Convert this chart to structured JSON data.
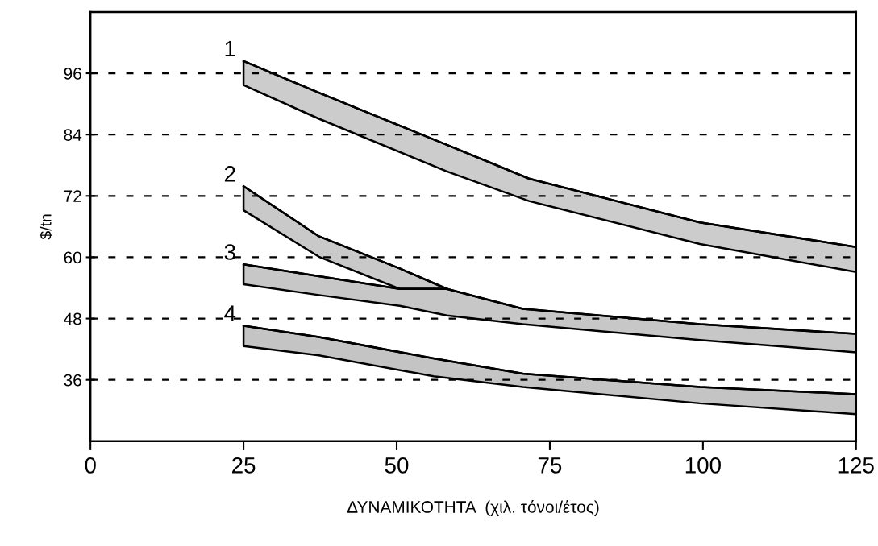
{
  "chart_data": {
    "type": "line",
    "xlabel": "ΔΥΝΑΜΙΚΟΤΗΤΑ  (χιλ. τόνοι/έτος)",
    "ylabel": "$/tn",
    "xlim": [
      0,
      125
    ],
    "xticks": [
      0,
      25,
      50,
      75,
      100,
      125
    ],
    "ylim": [
      24,
      108
    ],
    "yticks": [
      36,
      48,
      60,
      72,
      84,
      96
    ],
    "grid": "y",
    "line_style": "solid",
    "marker": "none",
    "series": [
      {
        "name": "1",
        "color": "#000000",
        "x": [
          25,
          37.3,
          58.2,
          71.6,
          99.5,
          125
        ],
        "values": [
          98.4,
          92.2,
          82.0,
          75.4,
          66.8,
          62.0
        ],
        "lower": [
          93.7,
          87.1,
          76.8,
          71.0,
          62.6,
          57.1
        ],
        "upper": [
          98.4,
          92.2,
          82.0,
          75.4,
          66.8,
          62.0
        ]
      },
      {
        "name": "2",
        "color": "#000000",
        "x": [
          25,
          37.3,
          50.5,
          58.2
        ],
        "values": [
          73.9,
          64.1,
          57.8,
          53.8
        ],
        "lower": [
          69.2,
          60.1,
          53.8,
          53.8
        ],
        "upper": [
          73.9,
          64.1,
          57.8,
          53.8
        ]
      },
      {
        "name": "3",
        "color": "#000000",
        "x": [
          25,
          37.3,
          50.5,
          58.2,
          70.6,
          99.5,
          125
        ],
        "values": [
          58.6,
          56.3,
          53.8,
          53.8,
          49.9,
          46.9,
          45.0
        ],
        "lower": [
          54.7,
          52.6,
          50.5,
          48.6,
          46.9,
          43.8,
          41.4
        ],
        "upper": [
          58.6,
          56.3,
          53.8,
          53.8,
          49.9,
          46.9,
          45.0
        ]
      },
      {
        "name": "4",
        "color": "#000000",
        "x": [
          25,
          37.3,
          56,
          70.6,
          99.5,
          125
        ],
        "values": [
          46.6,
          44.4,
          40.2,
          37.2,
          34.6,
          33.2
        ],
        "lower": [
          42.6,
          40.8,
          36.7,
          34.6,
          31.4,
          29.3
        ],
        "upper": [
          46.6,
          44.4,
          40.2,
          37.2,
          34.6,
          33.2
        ]
      }
    ]
  }
}
